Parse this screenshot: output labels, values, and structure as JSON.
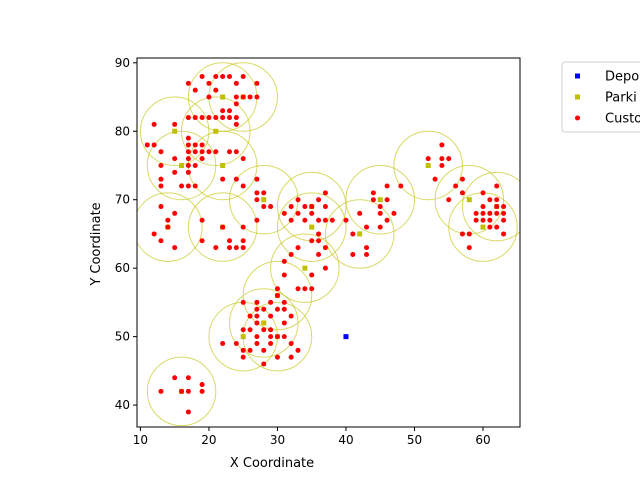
{
  "chart_data": {
    "type": "scatter",
    "xlabel": "X Coordinate",
    "ylabel": "Y Coordinate",
    "xlim": [
      9.5,
      65.4
    ],
    "ylim": [
      36.8,
      90.7
    ],
    "xticks": [
      10,
      20,
      30,
      40,
      50,
      60
    ],
    "yticks": [
      40,
      50,
      60,
      70,
      80,
      90
    ],
    "grid": false,
    "legend_position": "top-right, outside plot",
    "parking_circle_radius": 5,
    "series": [
      {
        "name": "Depot",
        "legend_text": "Depo",
        "color": "#0000ff",
        "marker": "square",
        "points": [
          [
            40,
            50
          ]
        ]
      },
      {
        "name": "Parking",
        "legend_text": "Parki",
        "color": "#bfbf00",
        "marker": "square",
        "points": [
          [
            15,
            80
          ],
          [
            16,
            75
          ],
          [
            14,
            66
          ],
          [
            21,
            80
          ],
          [
            22,
            85
          ],
          [
            25,
            85
          ],
          [
            22,
            75
          ],
          [
            28,
            70
          ],
          [
            22,
            66
          ],
          [
            35,
            69
          ],
          [
            35,
            66
          ],
          [
            34,
            60
          ],
          [
            42,
            65
          ],
          [
            45,
            70
          ],
          [
            52,
            75
          ],
          [
            58,
            70
          ],
          [
            62,
            69
          ],
          [
            60,
            66
          ],
          [
            30,
            56
          ],
          [
            28,
            52
          ],
          [
            25,
            50
          ],
          [
            30,
            50
          ],
          [
            16,
            42
          ]
        ]
      },
      {
        "name": "Customer",
        "legend_text": "Custo",
        "color": "#ff0000",
        "marker": "circle",
        "points": [
          [
            12,
            81
          ],
          [
            15,
            81
          ],
          [
            12,
            78
          ],
          [
            13,
            77
          ],
          [
            15,
            76
          ],
          [
            13,
            75
          ],
          [
            15,
            74
          ],
          [
            13,
            73
          ],
          [
            13,
            72
          ],
          [
            16,
            72
          ],
          [
            17,
            79
          ],
          [
            17,
            78
          ],
          [
            17,
            77
          ],
          [
            17,
            76
          ],
          [
            17,
            75
          ],
          [
            17,
            74
          ],
          [
            18,
            78
          ],
          [
            18,
            77
          ],
          [
            18,
            75
          ],
          [
            19,
            78
          ],
          [
            19,
            77
          ],
          [
            19,
            76
          ],
          [
            17,
            72
          ],
          [
            18,
            72
          ],
          [
            20,
            77
          ],
          [
            21,
            77
          ],
          [
            17,
            82
          ],
          [
            18,
            82
          ],
          [
            19,
            82
          ],
          [
            20,
            82
          ],
          [
            21,
            82
          ],
          [
            22,
            82
          ],
          [
            22,
            83
          ],
          [
            23,
            83
          ],
          [
            23,
            82
          ],
          [
            24,
            82
          ],
          [
            24,
            81
          ],
          [
            17,
            87
          ],
          [
            18,
            86
          ],
          [
            19,
            88
          ],
          [
            20,
            87
          ],
          [
            20,
            85
          ],
          [
            21,
            88
          ],
          [
            22,
            88
          ],
          [
            23,
            88
          ],
          [
            24,
            84
          ],
          [
            24,
            85
          ],
          [
            24,
            87
          ],
          [
            25,
            88
          ],
          [
            25,
            85
          ],
          [
            26,
            85
          ],
          [
            27,
            87
          ],
          [
            27,
            85
          ],
          [
            21,
            86
          ],
          [
            23,
            77
          ],
          [
            24,
            77
          ],
          [
            25,
            76
          ],
          [
            24,
            73
          ],
          [
            25,
            72
          ],
          [
            22,
            73
          ],
          [
            11,
            78
          ],
          [
            13,
            69
          ],
          [
            14,
            67
          ],
          [
            15,
            68
          ],
          [
            12,
            65
          ],
          [
            13,
            64
          ],
          [
            15,
            63
          ],
          [
            14,
            66
          ],
          [
            19,
            67
          ],
          [
            19,
            64
          ],
          [
            21,
            63
          ],
          [
            22,
            66
          ],
          [
            23,
            64
          ],
          [
            23,
            63
          ],
          [
            24,
            63
          ],
          [
            25,
            63
          ],
          [
            25,
            64
          ],
          [
            25,
            66
          ],
          [
            27,
            73
          ],
          [
            27,
            71
          ],
          [
            28,
            71
          ],
          [
            27,
            70
          ],
          [
            28,
            69
          ],
          [
            27,
            67
          ],
          [
            29,
            69
          ],
          [
            31,
            68
          ],
          [
            32,
            69
          ],
          [
            32,
            67
          ],
          [
            33,
            70
          ],
          [
            33,
            68
          ],
          [
            34,
            69
          ],
          [
            34,
            67
          ],
          [
            35,
            69
          ],
          [
            35,
            68
          ],
          [
            36,
            70
          ],
          [
            37,
            71
          ],
          [
            37,
            69
          ],
          [
            36,
            67
          ],
          [
            37,
            67
          ],
          [
            36,
            65
          ],
          [
            35,
            64
          ],
          [
            36,
            64
          ],
          [
            37,
            63
          ],
          [
            33,
            63
          ],
          [
            32,
            62
          ],
          [
            31,
            61
          ],
          [
            31,
            59
          ],
          [
            33,
            57
          ],
          [
            34,
            57
          ],
          [
            35,
            57
          ],
          [
            35,
            59
          ],
          [
            36,
            62
          ],
          [
            37,
            60
          ],
          [
            38,
            67
          ],
          [
            40,
            67
          ],
          [
            41,
            62
          ],
          [
            41,
            65
          ],
          [
            42,
            68
          ],
          [
            43,
            63
          ],
          [
            43,
            62
          ],
          [
            43,
            66
          ],
          [
            44,
            71
          ],
          [
            44,
            70
          ],
          [
            45,
            69
          ],
          [
            45,
            68
          ],
          [
            46,
            67
          ],
          [
            46,
            72
          ],
          [
            45,
            66
          ],
          [
            46,
            70
          ],
          [
            47,
            68
          ],
          [
            48,
            72
          ],
          [
            52,
            76
          ],
          [
            53,
            73
          ],
          [
            54,
            78
          ],
          [
            54,
            76
          ],
          [
            54,
            75
          ],
          [
            55,
            76
          ],
          [
            55,
            70
          ],
          [
            56,
            72
          ],
          [
            57,
            73
          ],
          [
            57,
            71
          ],
          [
            57,
            65
          ],
          [
            58,
            65
          ],
          [
            58,
            63
          ],
          [
            59,
            68
          ],
          [
            59,
            67
          ],
          [
            60,
            71
          ],
          [
            60,
            69
          ],
          [
            60,
            68
          ],
          [
            60,
            67
          ],
          [
            61,
            70
          ],
          [
            61,
            68
          ],
          [
            61,
            67
          ],
          [
            62,
            72
          ],
          [
            62,
            70
          ],
          [
            62,
            69
          ],
          [
            62,
            68
          ],
          [
            62,
            66
          ],
          [
            63,
            69
          ],
          [
            63,
            68
          ],
          [
            63,
            67
          ],
          [
            63,
            65
          ],
          [
            61,
            66
          ],
          [
            30,
            57
          ],
          [
            30,
            56
          ],
          [
            29,
            55
          ],
          [
            30,
            54
          ],
          [
            31,
            54
          ],
          [
            31,
            55
          ],
          [
            32,
            53
          ],
          [
            31,
            52
          ],
          [
            27,
            55
          ],
          [
            27,
            54
          ],
          [
            27,
            53
          ],
          [
            28,
            54
          ],
          [
            29,
            53
          ],
          [
            28,
            51
          ],
          [
            29,
            51
          ],
          [
            27,
            52
          ],
          [
            25,
            55
          ],
          [
            26,
            53
          ],
          [
            25,
            51
          ],
          [
            26,
            51
          ],
          [
            24,
            49
          ],
          [
            25,
            48
          ],
          [
            26,
            48
          ],
          [
            25,
            47
          ],
          [
            27,
            50
          ],
          [
            27,
            49
          ],
          [
            28,
            48
          ],
          [
            28,
            46
          ],
          [
            29,
            50
          ],
          [
            29,
            49
          ],
          [
            30,
            50
          ],
          [
            30,
            47
          ],
          [
            31,
            50
          ],
          [
            32,
            49
          ],
          [
            32,
            47
          ],
          [
            33,
            48
          ],
          [
            22,
            49
          ],
          [
            13,
            42
          ],
          [
            15,
            44
          ],
          [
            16,
            42
          ],
          [
            17,
            44
          ],
          [
            17,
            42
          ],
          [
            17,
            39
          ],
          [
            19,
            43
          ],
          [
            19,
            42
          ]
        ]
      }
    ]
  }
}
